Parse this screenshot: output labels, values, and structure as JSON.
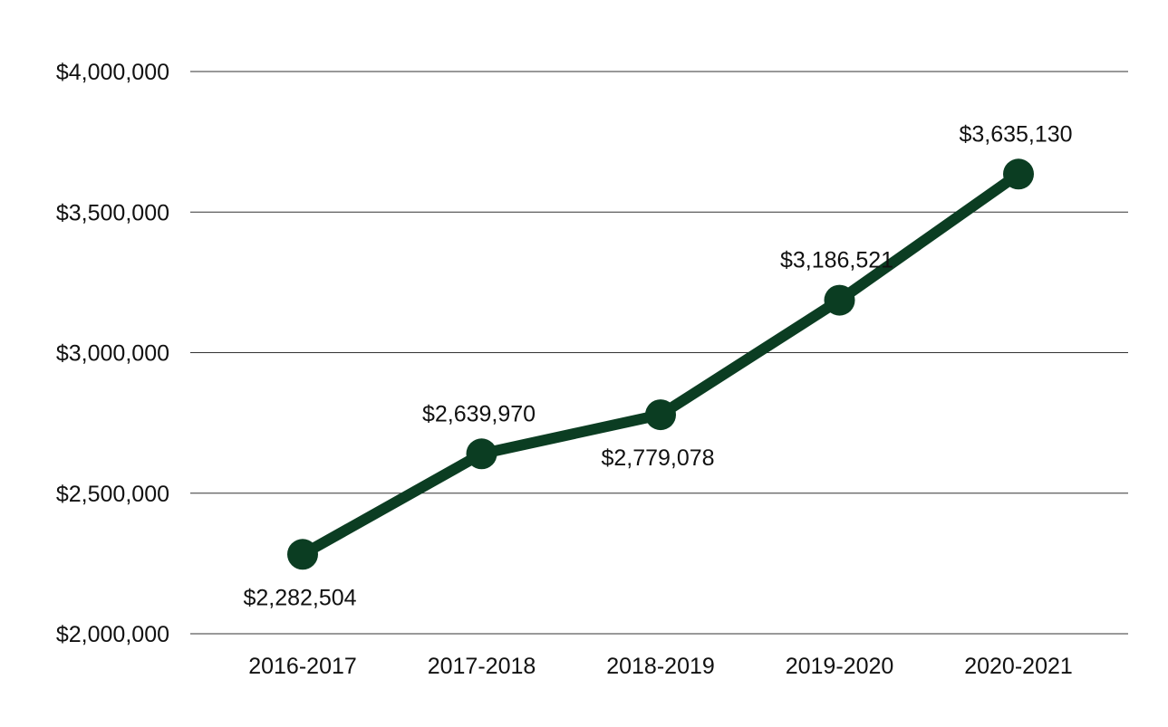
{
  "chart_data": {
    "type": "line",
    "title": "",
    "xlabel": "",
    "ylabel": "",
    "categories": [
      "2016-2017",
      "2017-2018",
      "2018-2019",
      "2019-2020",
      "2020-2021"
    ],
    "series": [
      {
        "values": [
          2282504,
          2639970,
          2779078,
          3186521,
          3635130
        ],
        "data_labels": [
          "$2,282,504",
          "$2,639,970",
          "$2,779,078",
          "$3,186,521",
          "$3,635,130"
        ],
        "label_positions": [
          "below",
          "above",
          "below",
          "above",
          "above"
        ],
        "color": "#0b3d22"
      }
    ],
    "ylim": [
      2000000,
      4000000
    ],
    "yticks": [
      2000000,
      2500000,
      3000000,
      3500000,
      4000000
    ],
    "ytick_labels": [
      "$2,000,000",
      "$2,500,000",
      "$3,000,000",
      "$3,500,000",
      "$4,000,000"
    ],
    "grid": true,
    "legend": "none",
    "gridline_color": "#333333"
  }
}
